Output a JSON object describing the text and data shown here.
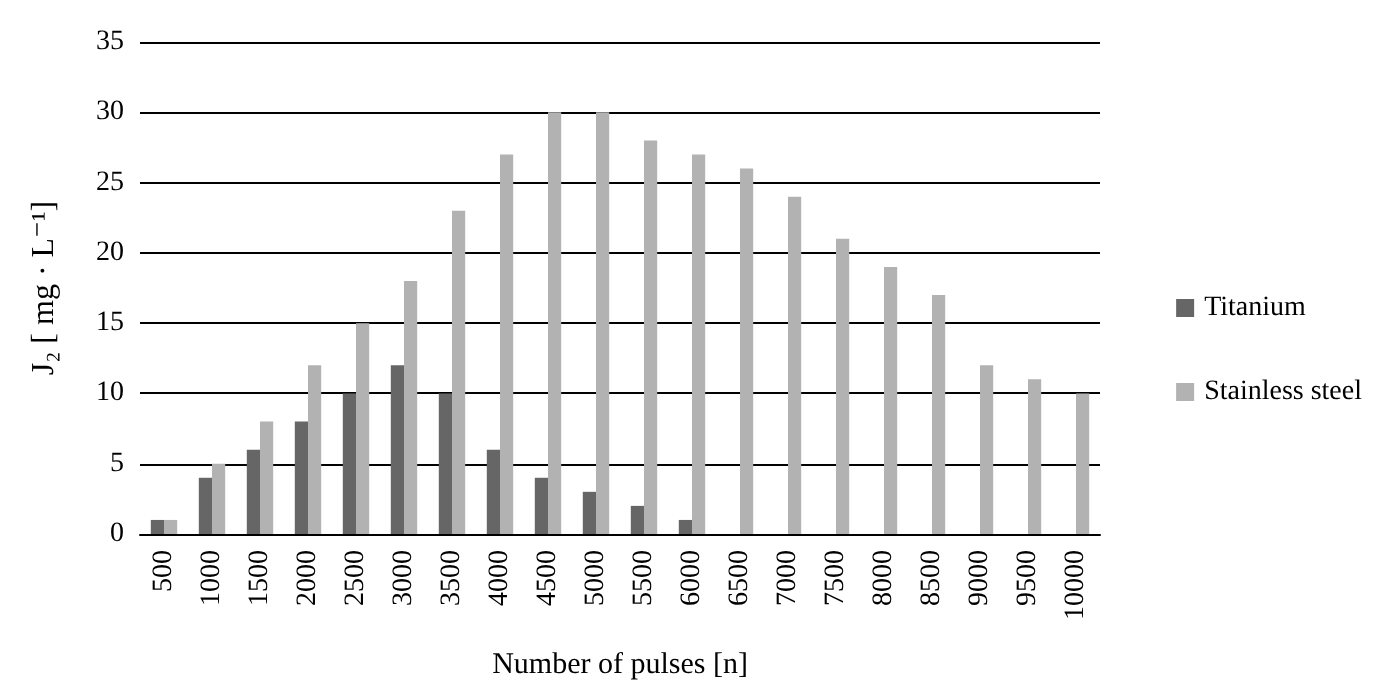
{
  "chart_data": {
    "type": "bar",
    "xlabel": "Number of pulses [n]",
    "ylabel": "J₂ [ mg · L⁻¹]",
    "categories": [
      "500",
      "1000",
      "1500",
      "2000",
      "2500",
      "3000",
      "3500",
      "4000",
      "4500",
      "5000",
      "5500",
      "6000",
      "6500",
      "7000",
      "7500",
      "8000",
      "8500",
      "9000",
      "9500",
      "10000"
    ],
    "series": [
      {
        "name": "Titanium",
        "color": "#666666",
        "values": [
          1,
          4,
          6,
          8,
          10,
          12,
          10,
          6,
          4,
          3,
          2,
          1,
          null,
          null,
          null,
          null,
          null,
          null,
          null,
          null
        ]
      },
      {
        "name": "Stainless steel",
        "color": "#b2b2b2",
        "values": [
          1,
          5,
          8,
          12,
          15,
          18,
          23,
          27,
          30,
          30,
          28,
          27,
          26,
          24,
          21,
          19,
          17,
          12,
          11,
          10
        ]
      }
    ],
    "ylim": [
      0,
      35
    ],
    "yticks": [
      0,
      5,
      10,
      15,
      20,
      25,
      30,
      35
    ],
    "grid": "y",
    "legend": "right"
  }
}
